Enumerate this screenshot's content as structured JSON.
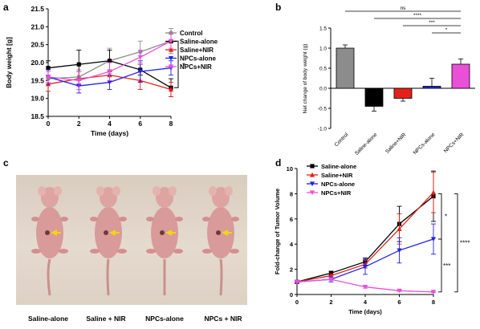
{
  "panel_letters": {
    "a": "a",
    "b": "b",
    "c": "c",
    "d": "d"
  },
  "chart_data": [
    {
      "panel": "a",
      "type": "line",
      "xlabel": "Time (days)",
      "ylabel": "Body weight [g]",
      "xlim": [
        0,
        8
      ],
      "ylim": [
        18.5,
        21.5
      ],
      "xticks": [
        "0",
        "2",
        "4",
        "6",
        "8"
      ],
      "yticks": [
        "18.5",
        "19.0",
        "19.5",
        "20.0",
        "20.5",
        "21.0",
        "21.5"
      ],
      "x": [
        0,
        2,
        4,
        6,
        8
      ],
      "series": [
        {
          "name": "Control",
          "color": "#8c8c8c",
          "marker": "circle",
          "values": [
            19.55,
            19.6,
            20.05,
            20.3,
            20.6
          ],
          "err": [
            0.1,
            0.2,
            0.35,
            0.3,
            0.35
          ]
        },
        {
          "name": "Saline-alone",
          "color": "#000000",
          "marker": "square",
          "values": [
            19.85,
            19.95,
            20.05,
            19.8,
            19.3
          ],
          "err": [
            0.2,
            0.4,
            0.3,
            0.15,
            0.25
          ]
        },
        {
          "name": "Saline+NIR",
          "color": "#e3221b",
          "marker": "triangle-up",
          "values": [
            19.4,
            19.55,
            19.65,
            19.5,
            19.25
          ],
          "err": [
            0.2,
            0.2,
            0.15,
            0.25,
            0.2
          ]
        },
        {
          "name": "NPCs-alone",
          "color": "#2323e6",
          "marker": "triangle-down",
          "values": [
            19.6,
            19.35,
            19.45,
            19.75,
            19.85
          ],
          "err": [
            0.2,
            0.2,
            0.2,
            0.3,
            0.2
          ]
        },
        {
          "name": "NPCs+NIR",
          "color": "#ea4fd7",
          "marker": "triangle-down",
          "values": [
            19.6,
            19.5,
            19.75,
            20.15,
            20.6
          ],
          "err": [
            0.15,
            0.25,
            0.25,
            0.2,
            0.2
          ]
        }
      ],
      "annotation": "*"
    },
    {
      "panel": "b",
      "type": "bar",
      "ylabel": "Net change of body weight (g)",
      "ylim": [
        -1.0,
        1.5
      ],
      "yticks": [
        "-1.0",
        "-0.5",
        "0.0",
        "0.5",
        "1.0",
        "1.5"
      ],
      "categories": [
        "Control",
        "Saline-alone",
        "Saline+NIR",
        "NPCs-alone",
        "NPCs+NIR"
      ],
      "values": [
        1.0,
        -0.45,
        -0.25,
        0.05,
        0.6
      ],
      "err": [
        0.08,
        0.12,
        0.07,
        0.2,
        0.13
      ],
      "colors": [
        "#8c8c8c",
        "#000000",
        "#e3221b",
        "#2323e6",
        "#ea4fd7"
      ],
      "significance": [
        "ns",
        "****",
        "***",
        "*"
      ]
    },
    {
      "panel": "d",
      "type": "line",
      "xlabel": "Time (days)",
      "ylabel": "Fold-change of Tumor Volume",
      "xlim": [
        0,
        8
      ],
      "ylim": [
        0,
        10
      ],
      "xticks": [
        "0",
        "2",
        "4",
        "6",
        "8"
      ],
      "yticks": [
        "0",
        "2",
        "4",
        "6",
        "8",
        "10"
      ],
      "x": [
        0,
        2,
        4,
        6,
        8
      ],
      "series": [
        {
          "name": "Saline-alone",
          "color": "#000000",
          "marker": "square",
          "values": [
            1.0,
            1.7,
            2.6,
            5.6,
            7.8
          ],
          "err": [
            0.1,
            0.15,
            0.3,
            1.4,
            2.0
          ]
        },
        {
          "name": "Saline+NIR",
          "color": "#e3221b",
          "marker": "triangle-up",
          "values": [
            1.0,
            1.5,
            2.4,
            5.2,
            8.1
          ],
          "err": [
            0.1,
            0.15,
            0.3,
            1.2,
            1.6
          ]
        },
        {
          "name": "NPCs-alone",
          "color": "#2323e6",
          "marker": "triangle-down",
          "values": [
            1.0,
            1.2,
            2.2,
            3.5,
            4.4
          ],
          "err": [
            0.1,
            0.2,
            0.6,
            1.0,
            1.2
          ]
        },
        {
          "name": "NPCs+NIR",
          "color": "#ea4fd7",
          "marker": "triangle-down",
          "values": [
            1.0,
            1.2,
            0.6,
            0.3,
            0.2
          ],
          "err": [
            0.05,
            0.1,
            0.1,
            0.05,
            0.05
          ]
        }
      ],
      "significance": [
        "*",
        "***",
        "****"
      ]
    }
  ],
  "photo": {
    "captions": [
      "Saline-alone",
      "Saline + NIR",
      "NPCs-alone",
      "NPCs + NIR"
    ]
  }
}
